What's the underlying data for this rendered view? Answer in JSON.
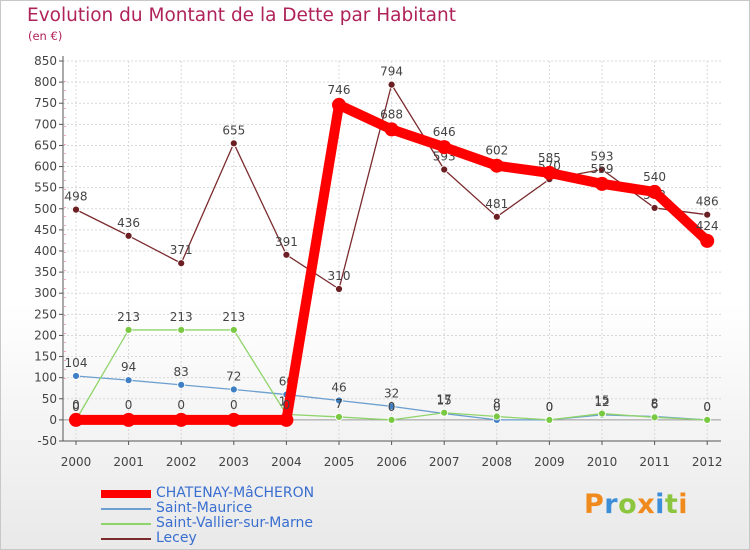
{
  "title": "Evolution du Montant de la Dette par Habitant",
  "subtitle": "(en €)",
  "logo": "Proxiti",
  "colors": {
    "title": "#b0235a",
    "legend_text": "#3a6fd0",
    "grid": "#d8d8d8",
    "axis": "#555555"
  },
  "chart_data": {
    "type": "line",
    "title": "Evolution du Montant de la Dette par Habitant",
    "subtitle": "(en €)",
    "x": [
      "2000",
      "2001",
      "2002",
      "2003",
      "2004",
      "2005",
      "2006",
      "2007",
      "2008",
      "2009",
      "2010",
      "2011",
      "2012"
    ],
    "ylim": [
      -50,
      850
    ],
    "yticks": [
      -50,
      0,
      50,
      100,
      150,
      200,
      250,
      300,
      350,
      400,
      450,
      500,
      550,
      600,
      650,
      700,
      750,
      800,
      850
    ],
    "grid": true,
    "legend_position": "bottom-left",
    "series": [
      {
        "name": "Lecey",
        "color": "#7b2b2e",
        "marker_color": "#6b1f22",
        "values": [
          498,
          436,
          371,
          655,
          391,
          310,
          794,
          593,
          481,
          570,
          593,
          502,
          486
        ],
        "labels": [
          "498",
          "436",
          "371",
          "655",
          "391",
          "310",
          "794",
          "593",
          "481",
          "570",
          "593",
          "502",
          "486"
        ]
      },
      {
        "name": "Saint-Maurice",
        "color": "#6c9fcf",
        "marker_color": "#3f7fc4",
        "values": [
          104,
          94,
          83,
          72,
          60,
          46,
          32,
          15,
          0,
          0,
          12,
          8,
          0
        ],
        "labels": [
          "104",
          "94",
          "83",
          "72",
          "60",
          "46",
          "32",
          "15",
          "0",
          "0",
          "12",
          "8",
          "0"
        ]
      },
      {
        "name": "Saint-Vallier-sur-Marne",
        "color": "#8fd46a",
        "marker_color": "#7ac943",
        "values": [
          0,
          213,
          213,
          213,
          13,
          7,
          0,
          17,
          8,
          0,
          15,
          6,
          0
        ],
        "labels": [
          "0",
          "213",
          "213",
          "213",
          "13",
          "7",
          "0",
          "17",
          "8",
          "0",
          "15",
          "6",
          "0"
        ]
      },
      {
        "name": "CHATENAY-MâCHERON",
        "color": "#ff0000",
        "marker_color": "#ff0000",
        "values": [
          0,
          0,
          0,
          0,
          0,
          746,
          688,
          646,
          602,
          585,
          559,
          540,
          424
        ],
        "labels": [
          "0",
          "0",
          "0",
          "0",
          "0",
          "746",
          "688",
          "646",
          "602",
          "585",
          "559",
          "540",
          "424"
        ]
      }
    ],
    "legend": [
      "CHATENAY-MâCHERON",
      "Saint-Maurice",
      "Saint-Vallier-sur-Marne",
      "Lecey"
    ]
  }
}
